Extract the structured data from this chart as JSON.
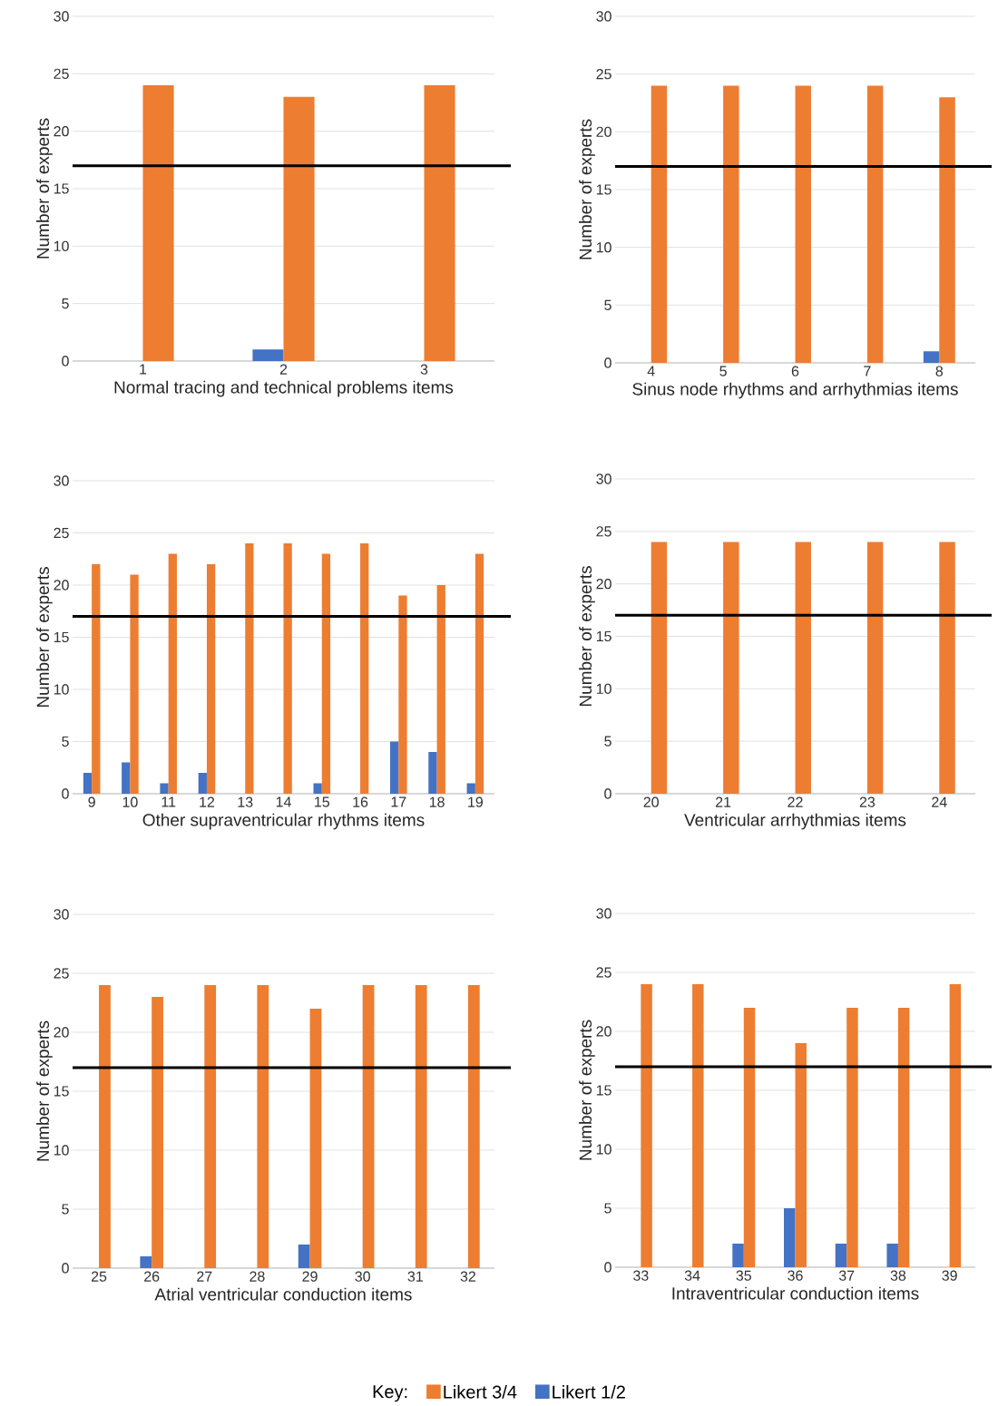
{
  "chart_data": [
    {
      "type": "bar",
      "xlabel": "Normal tracing and technical problems items",
      "ylabel": "Number of experts",
      "categories": [
        "1",
        "2",
        "3"
      ],
      "series": [
        {
          "color": "#4472c4",
          "values": [
            0,
            1,
            0
          ]
        },
        {
          "color": "#ed7d31",
          "values": [
            24,
            23,
            24
          ]
        }
      ],
      "ylim": [
        0,
        30
      ],
      "yticks": [
        0,
        5,
        10,
        15,
        20,
        25,
        30
      ],
      "grid": "y",
      "ref_lines": [
        {
          "axis": "y",
          "value": 17,
          "color": "#000000"
        }
      ]
    },
    {
      "type": "bar",
      "xlabel": "Sinus node rhythms and arrhythmias items",
      "ylabel": "Number of experts",
      "categories": [
        "4",
        "5",
        "6",
        "7",
        "8"
      ],
      "series": [
        {
          "color": "#4472c4",
          "values": [
            0,
            0,
            0,
            0,
            1
          ]
        },
        {
          "color": "#ed7d31",
          "values": [
            24,
            24,
            24,
            24,
            23
          ]
        }
      ],
      "ylim": [
        0,
        30
      ],
      "yticks": [
        0,
        5,
        10,
        15,
        20,
        25,
        30
      ],
      "grid": "y",
      "ref_lines": [
        {
          "axis": "y",
          "value": 17,
          "color": "#000000"
        }
      ]
    },
    {
      "type": "bar",
      "xlabel": "Other supraventricular rhythms items",
      "ylabel": "Number of experts",
      "categories": [
        "9",
        "10",
        "11",
        "12",
        "13",
        "14",
        "15",
        "16",
        "17",
        "18",
        "19"
      ],
      "series": [
        {
          "color": "#4472c4",
          "values": [
            2,
            3,
            1,
            2,
            0,
            0,
            1,
            0,
            5,
            4,
            1
          ]
        },
        {
          "color": "#ed7d31",
          "values": [
            22,
            21,
            23,
            22,
            24,
            24,
            23,
            24,
            19,
            20,
            23
          ]
        }
      ],
      "ylim": [
        0,
        30
      ],
      "yticks": [
        0,
        5,
        10,
        15,
        20,
        25,
        30
      ],
      "grid": "y",
      "ref_lines": [
        {
          "axis": "y",
          "value": 17,
          "color": "#000000"
        }
      ]
    },
    {
      "type": "bar",
      "xlabel": "Ventricular arrhythmias items",
      "ylabel": "Number of experts",
      "categories": [
        "20",
        "21",
        "22",
        "23",
        "24"
      ],
      "series": [
        {
          "color": "#4472c4",
          "values": [
            0,
            0,
            0,
            0,
            0
          ]
        },
        {
          "color": "#ed7d31",
          "values": [
            24,
            24,
            24,
            24,
            24
          ]
        }
      ],
      "ylim": [
        0,
        30
      ],
      "yticks": [
        0,
        5,
        10,
        15,
        20,
        25,
        30
      ],
      "grid": "y",
      "ref_lines": [
        {
          "axis": "y",
          "value": 17,
          "color": "#000000"
        }
      ]
    },
    {
      "type": "bar",
      "xlabel": "Atrial ventricular conduction items",
      "ylabel": "Number of experts",
      "categories": [
        "25",
        "26",
        "27",
        "28",
        "29",
        "30",
        "31",
        "32"
      ],
      "series": [
        {
          "color": "#4472c4",
          "values": [
            0,
            1,
            0,
            0,
            2,
            0,
            0,
            0
          ]
        },
        {
          "color": "#ed7d31",
          "values": [
            24,
            23,
            24,
            24,
            22,
            24,
            24,
            24
          ]
        }
      ],
      "ylim": [
        0,
        30
      ],
      "yticks": [
        0,
        5,
        10,
        15,
        20,
        25,
        30
      ],
      "grid": "y",
      "ref_lines": [
        {
          "axis": "y",
          "value": 17,
          "color": "#000000"
        }
      ]
    },
    {
      "type": "bar",
      "xlabel": "Intraventricular conduction items",
      "ylabel": "Number of experts",
      "categories": [
        "33",
        "34",
        "35",
        "36",
        "37",
        "38",
        "39"
      ],
      "series": [
        {
          "name": "Likert 1/2",
          "color": "#4472c4",
          "values": [
            0,
            0,
            2,
            5,
            2,
            2,
            0
          ]
        },
        {
          "name": "Likert 3/4",
          "color": "#ed7d31",
          "values": [
            24,
            24,
            22,
            19,
            22,
            22,
            24
          ]
        }
      ],
      "ylim": [
        0,
        30
      ],
      "yticks": [
        0,
        5,
        10,
        15,
        20,
        25,
        30
      ],
      "grid": "y",
      "ref_lines": [
        {
          "axis": "y",
          "value": 17,
          "color": "#000000"
        }
      ],
      "legend": "bottom",
      "legend_title": "Key:"
    }
  ]
}
